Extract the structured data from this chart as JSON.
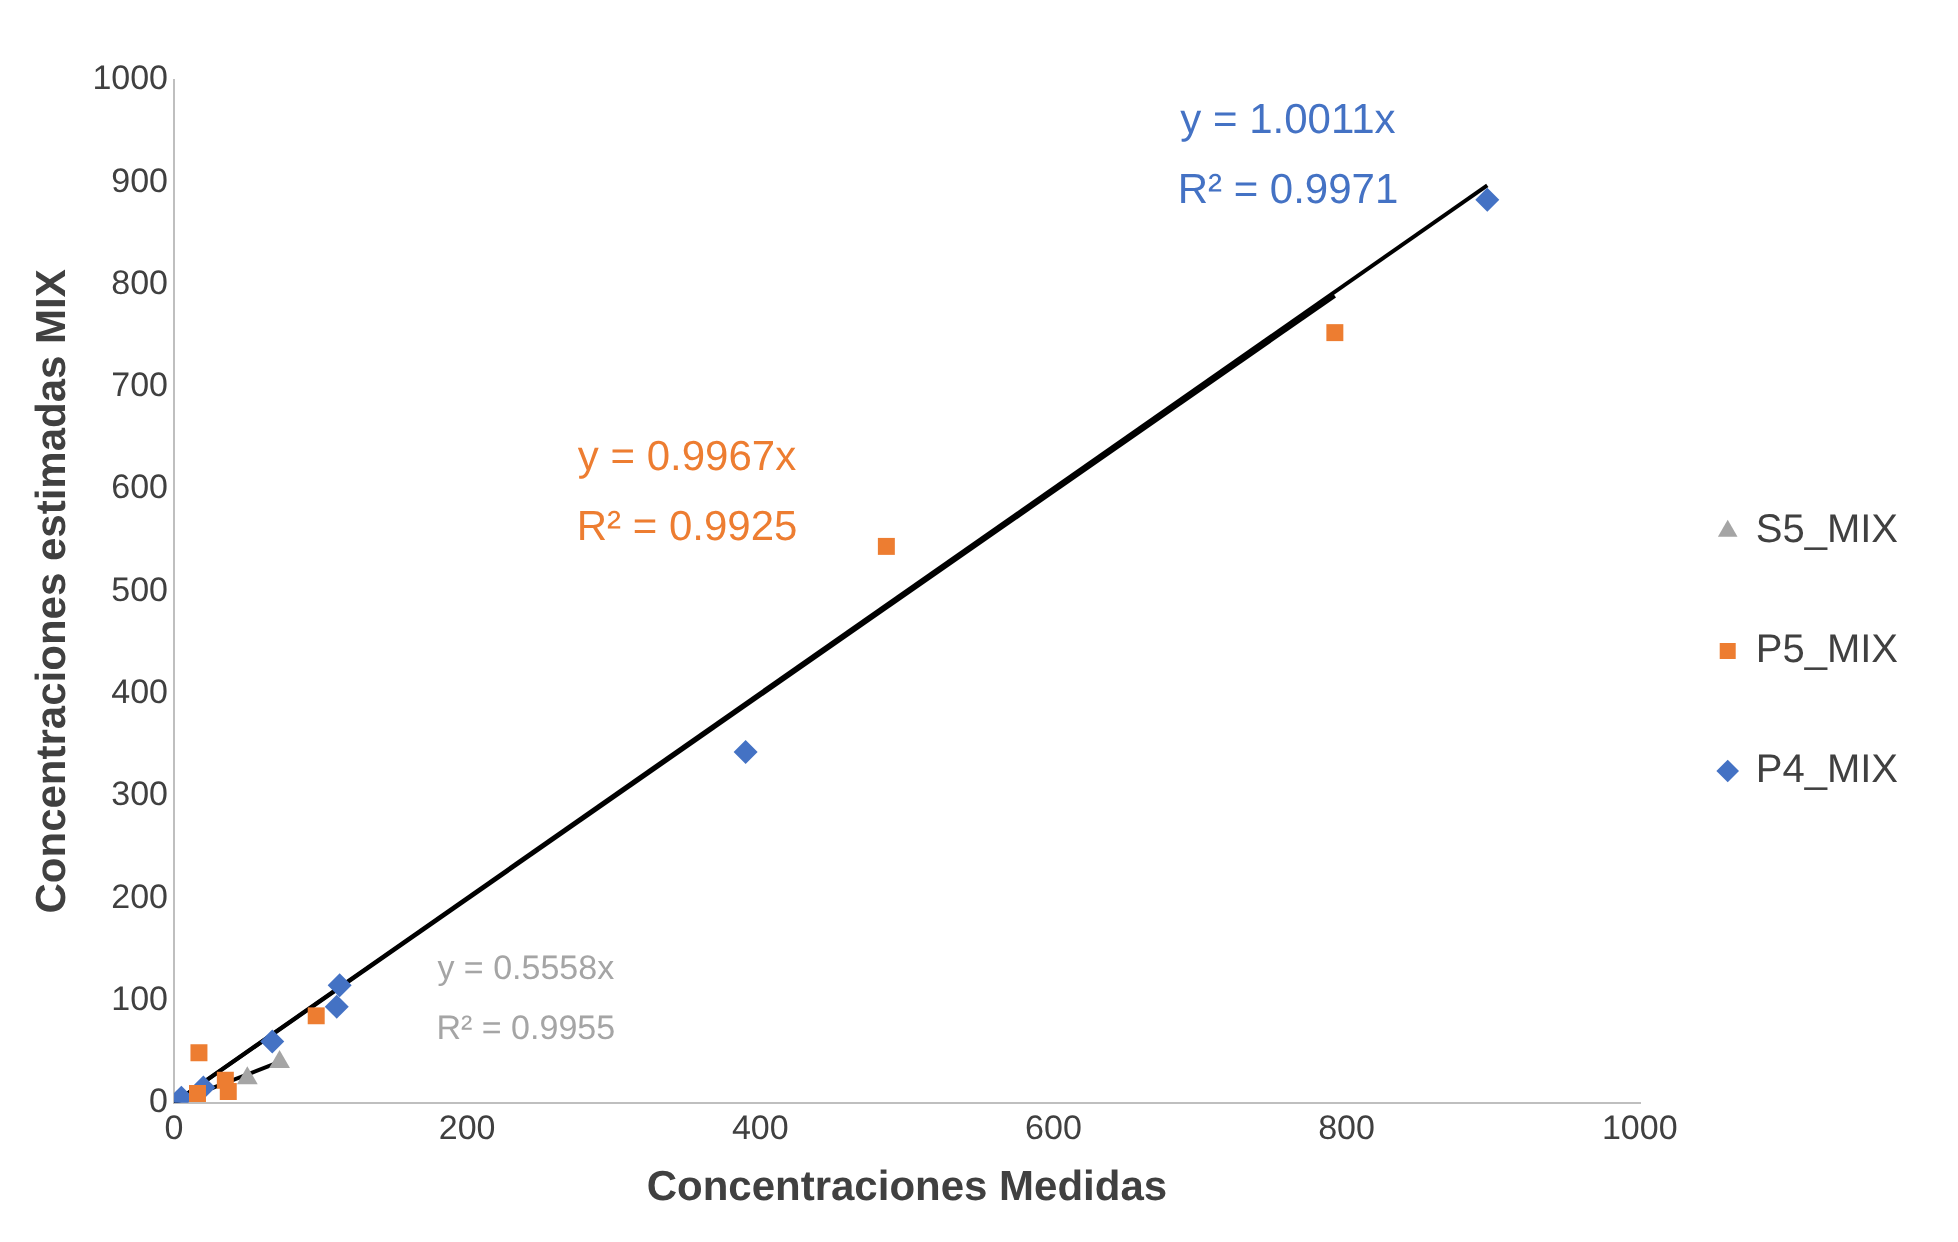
{
  "chart_data": {
    "type": "scatter",
    "xlabel": "Concentraciones Medidas",
    "ylabel": "Concentraciones estimadas MIX",
    "xlim": [
      0,
      1000
    ],
    "xticks": [
      0,
      200,
      400,
      600,
      800,
      1000
    ],
    "ylim": [
      0,
      1000
    ],
    "yticks": [
      0,
      100,
      200,
      300,
      400,
      500,
      600,
      700,
      800,
      900,
      1000
    ],
    "grid": false,
    "legend": "right",
    "series": [
      {
        "name": "P4_MIX",
        "color": "#4472c4",
        "marker": "diamond",
        "x": [
          5,
          20,
          67,
          111,
          113,
          390,
          896
        ],
        "values": [
          5,
          15,
          60,
          94,
          115,
          343,
          883
        ]
      },
      {
        "name": "P5_MIX",
        "color": "#ed7d31",
        "marker": "square",
        "x": [
          16,
          17,
          35,
          37,
          97,
          486,
          792
        ],
        "values": [
          9,
          49,
          22,
          11,
          85,
          544,
          753
        ]
      },
      {
        "name": "S5_MIX",
        "color": "#a5a5a5",
        "marker": "triangle",
        "x": [
          50,
          72
        ],
        "values": [
          24,
          40
        ]
      },
      {
        "type": "line",
        "color": "#000000",
        "marker": "none",
        "x": [
          0,
          896
        ],
        "values": [
          0,
          897
        ]
      },
      {
        "type": "line",
        "color": "#000000",
        "marker": "none",
        "x": [
          0,
          792
        ],
        "values": [
          0,
          789
        ]
      },
      {
        "type": "line",
        "color": "#000000",
        "marker": "none",
        "x": [
          0,
          72
        ],
        "values": [
          0,
          40
        ]
      }
    ],
    "annotations": [
      "y = 1.0011x\nR² = 0.9971",
      "y = 0.9967x\nR² = 0.9925",
      "y = 0.5558x\nR² = 0.9955"
    ]
  }
}
